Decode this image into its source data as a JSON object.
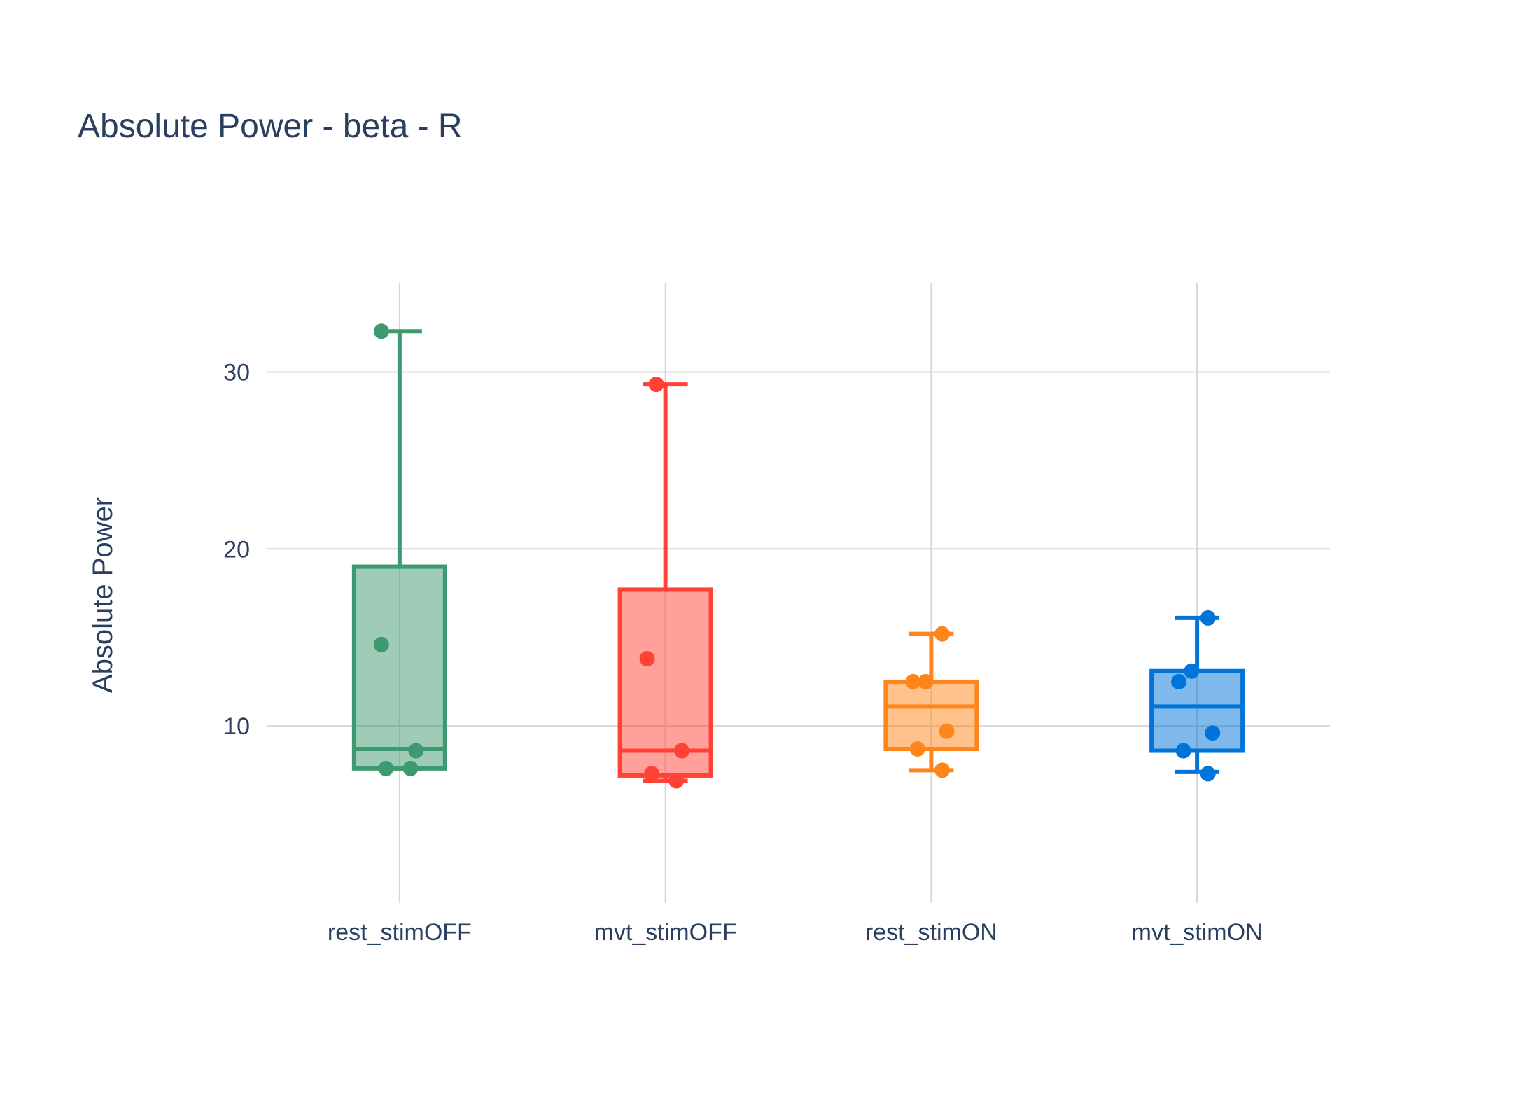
{
  "chart_data": {
    "type": "box",
    "title": "Absolute Power - beta - R",
    "xlabel": "",
    "ylabel": "Absolute Power",
    "ylim": [
      0,
      35
    ],
    "yticks": [
      10,
      20,
      30
    ],
    "grid": true,
    "legend": "none",
    "categories": [
      "rest_stimOFF",
      "mvt_stimOFF",
      "rest_stimON",
      "mvt_stimON"
    ],
    "series": [
      {
        "category": "rest_stimOFF",
        "color": "#3d9970",
        "fill": "rgba(61,153,112,0.5)",
        "min": 7.6,
        "q1": 7.6,
        "median": 8.7,
        "q3": 19.0,
        "max": 32.3,
        "points": [
          {
            "dx": -0.2,
            "y": 32.3
          },
          {
            "dx": -0.2,
            "y": 14.6
          },
          {
            "dx": 0.18,
            "y": 8.6
          },
          {
            "dx": -0.15,
            "y": 7.6
          },
          {
            "dx": 0.12,
            "y": 7.6
          }
        ]
      },
      {
        "category": "mvt_stimOFF",
        "color": "#ff4136",
        "fill": "rgba(255,65,54,0.5)",
        "min": 6.9,
        "q1": 7.2,
        "median": 8.6,
        "q3": 17.7,
        "max": 29.3,
        "points": [
          {
            "dx": -0.1,
            "y": 29.3
          },
          {
            "dx": -0.2,
            "y": 13.8
          },
          {
            "dx": 0.18,
            "y": 8.6
          },
          {
            "dx": -0.15,
            "y": 7.3
          },
          {
            "dx": 0.12,
            "y": 6.9
          }
        ]
      },
      {
        "category": "rest_stimON",
        "color": "#ff851b",
        "fill": "rgba(255,133,27,0.5)",
        "min": 7.5,
        "q1": 8.7,
        "median": 11.1,
        "q3": 12.5,
        "max": 15.2,
        "points": [
          {
            "dx": 0.12,
            "y": 15.2
          },
          {
            "dx": -0.2,
            "y": 12.5
          },
          {
            "dx": -0.06,
            "y": 12.5
          },
          {
            "dx": 0.17,
            "y": 9.7
          },
          {
            "dx": -0.15,
            "y": 8.7
          },
          {
            "dx": 0.12,
            "y": 7.5
          }
        ]
      },
      {
        "category": "mvt_stimON",
        "color": "#0074d9",
        "fill": "rgba(0,116,217,0.5)",
        "min": 7.4,
        "q1": 8.6,
        "median": 11.1,
        "q3": 13.1,
        "max": 16.1,
        "points": [
          {
            "dx": 0.12,
            "y": 16.1
          },
          {
            "dx": -0.06,
            "y": 13.1
          },
          {
            "dx": -0.2,
            "y": 12.5
          },
          {
            "dx": 0.17,
            "y": 9.6
          },
          {
            "dx": -0.15,
            "y": 8.6
          },
          {
            "dx": 0.12,
            "y": 7.3
          }
        ]
      }
    ]
  }
}
